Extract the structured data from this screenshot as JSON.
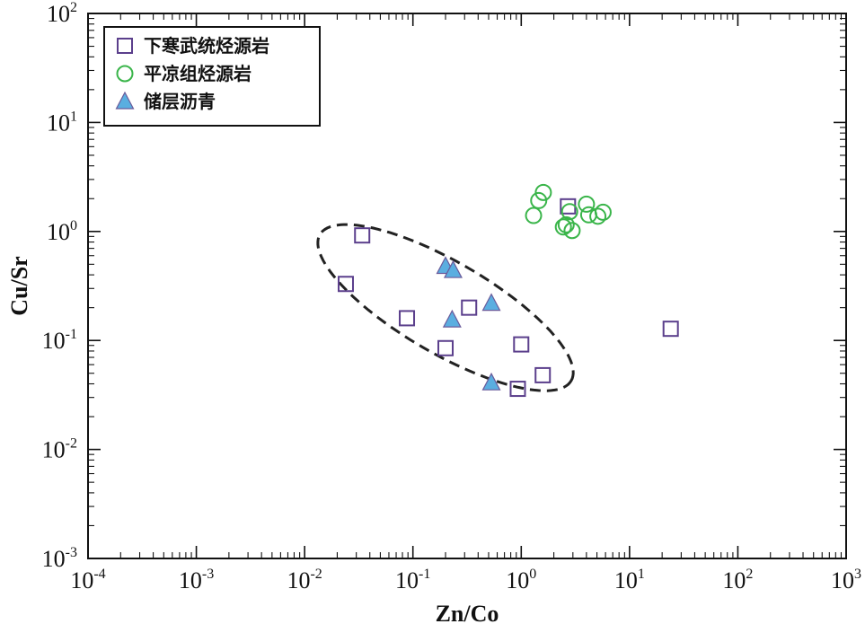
{
  "chart_data": {
    "type": "scatter",
    "title": "",
    "xlabel": "Zn/Co",
    "ylabel": "Cu/Sr",
    "x_scale": "log",
    "y_scale": "log",
    "xlim": [
      0.0001,
      1000
    ],
    "ylim": [
      0.001,
      100
    ],
    "x_ticks": [
      {
        "base": "10",
        "exp": "-4",
        "value": 0.0001
      },
      {
        "base": "10",
        "exp": "-3",
        "value": 0.001
      },
      {
        "base": "10",
        "exp": "-2",
        "value": 0.01
      },
      {
        "base": "10",
        "exp": "-1",
        "value": 0.1
      },
      {
        "base": "10",
        "exp": "0",
        "value": 1
      },
      {
        "base": "10",
        "exp": "1",
        "value": 10
      },
      {
        "base": "10",
        "exp": "2",
        "value": 100
      },
      {
        "base": "10",
        "exp": "3",
        "value": 1000
      }
    ],
    "y_ticks": [
      {
        "base": "10",
        "exp": "-3",
        "value": 0.001
      },
      {
        "base": "10",
        "exp": "-2",
        "value": 0.01
      },
      {
        "base": "10",
        "exp": "-1",
        "value": 0.1
      },
      {
        "base": "10",
        "exp": "0",
        "value": 1
      },
      {
        "base": "10",
        "exp": "1",
        "value": 10
      },
      {
        "base": "10",
        "exp": "2",
        "value": 100
      }
    ],
    "grid": false,
    "legend_position": "top-left",
    "series": [
      {
        "name": "下寒武统烃源岩",
        "marker": "square",
        "color": "#5b3f8c",
        "fill": "none",
        "points": [
          {
            "x": 0.034,
            "y": 0.92
          },
          {
            "x": 0.024,
            "y": 0.33
          },
          {
            "x": 0.088,
            "y": 0.16
          },
          {
            "x": 0.33,
            "y": 0.2
          },
          {
            "x": 0.2,
            "y": 0.085
          },
          {
            "x": 1.0,
            "y": 0.092
          },
          {
            "x": 1.58,
            "y": 0.048
          },
          {
            "x": 0.93,
            "y": 0.036
          },
          {
            "x": 2.7,
            "y": 1.7
          },
          {
            "x": 24,
            "y": 0.128
          }
        ]
      },
      {
        "name": "平凉组烃源岩",
        "marker": "circle",
        "color": "#3ab54a",
        "fill": "none",
        "points": [
          {
            "x": 1.6,
            "y": 2.28
          },
          {
            "x": 1.45,
            "y": 1.92
          },
          {
            "x": 1.3,
            "y": 1.4
          },
          {
            "x": 2.8,
            "y": 1.52
          },
          {
            "x": 2.6,
            "y": 1.15
          },
          {
            "x": 2.45,
            "y": 1.1
          },
          {
            "x": 2.95,
            "y": 1.02
          },
          {
            "x": 4.0,
            "y": 1.78
          },
          {
            "x": 4.2,
            "y": 1.42
          },
          {
            "x": 5.1,
            "y": 1.38
          },
          {
            "x": 5.7,
            "y": 1.5
          }
        ]
      },
      {
        "name": "储层沥青",
        "marker": "triangle",
        "color": "#5aaee0",
        "stroke": "#6a5a9a",
        "points": [
          {
            "x": 0.2,
            "y": 0.48
          },
          {
            "x": 0.235,
            "y": 0.44
          },
          {
            "x": 0.23,
            "y": 0.155
          },
          {
            "x": 0.53,
            "y": 0.22
          },
          {
            "x": 0.53,
            "y": 0.041
          }
        ]
      }
    ],
    "annotations": [
      {
        "type": "dashed-ellipse",
        "center_x": 0.2,
        "center_y": 0.2,
        "semi_major_decades": 1.34,
        "semi_minor_decades": 0.42,
        "tilt_deg": 30,
        "color": "#222222"
      }
    ]
  }
}
